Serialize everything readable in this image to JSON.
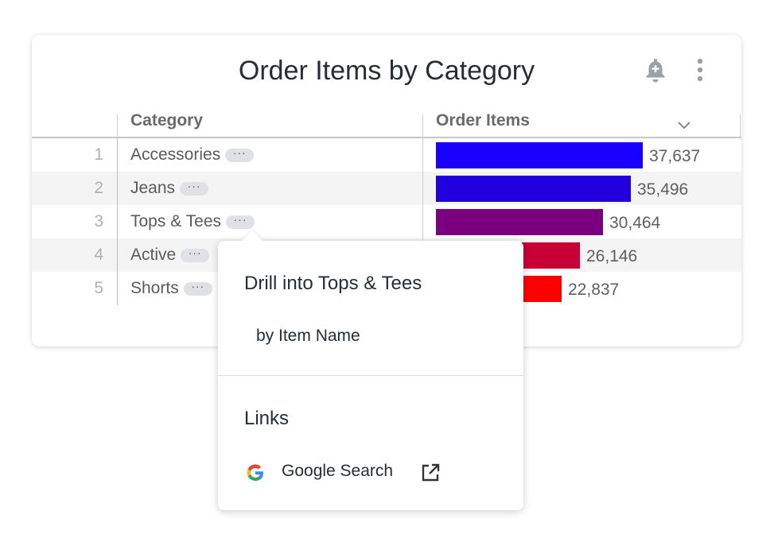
{
  "title": "Order Items by Category",
  "icons": {
    "alert": "bell-plus-icon",
    "menu": "more-vert-icon",
    "sort": "chevron-down-icon",
    "external": "open-in-new-icon"
  },
  "columns": {
    "category": "Category",
    "order_items": "Order Items"
  },
  "row_action_label": "···",
  "rows": [
    {
      "index": "1",
      "category": "Accessories",
      "value": "37,637",
      "color": "#1a00ff"
    },
    {
      "index": "2",
      "category": "Jeans",
      "value": "35,496",
      "color": "#2200dd"
    },
    {
      "index": "3",
      "category": "Tops & Tees",
      "value": "30,464",
      "color": "#7a0080"
    },
    {
      "index": "4",
      "category": "Active",
      "value": "26,146",
      "color": "#c80035"
    },
    {
      "index": "5",
      "category": "Shorts",
      "value": "22,837",
      "color": "#ff0000"
    }
  ],
  "popover": {
    "drill_title": "Drill into Tops & Tees",
    "drill_item": "by Item Name",
    "links_title": "Links",
    "link_item": "Google Search"
  }
}
